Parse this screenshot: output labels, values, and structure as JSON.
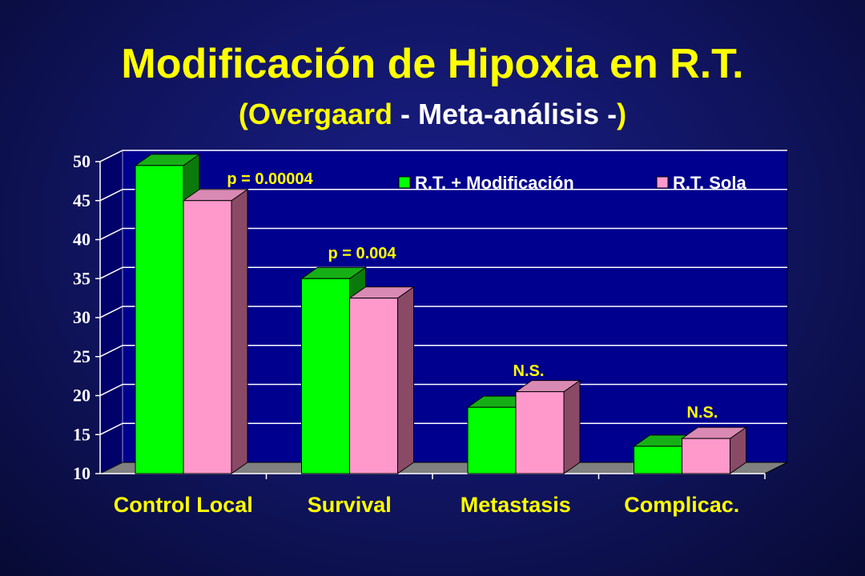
{
  "title": "Modificación de Hipoxia en R.T.",
  "subtitle": {
    "open": "(",
    "author": "Overgaard",
    "middle": " - Meta-análisis -",
    "close": ")"
  },
  "chart_data": {
    "type": "bar",
    "categories": [
      "Control Local",
      "Survival",
      "Metastasis",
      "Complicac."
    ],
    "series": [
      {
        "name": "R.T. + Modificación",
        "values": [
          49.5,
          35,
          18.5,
          13.5
        ],
        "color": "#00ff00"
      },
      {
        "name": "R.T. Sola",
        "values": [
          45,
          32.5,
          20.5,
          14.5
        ],
        "color": "#ff99cc"
      }
    ],
    "annotations": [
      "p = 0.00004",
      "p = 0.004",
      "N.S.",
      "N.S."
    ],
    "ylim": [
      10,
      50
    ],
    "yticks": [
      10,
      15,
      20,
      25,
      30,
      35,
      40,
      45,
      50
    ],
    "grid": true,
    "legend_position": "top-right",
    "style": "3d"
  }
}
